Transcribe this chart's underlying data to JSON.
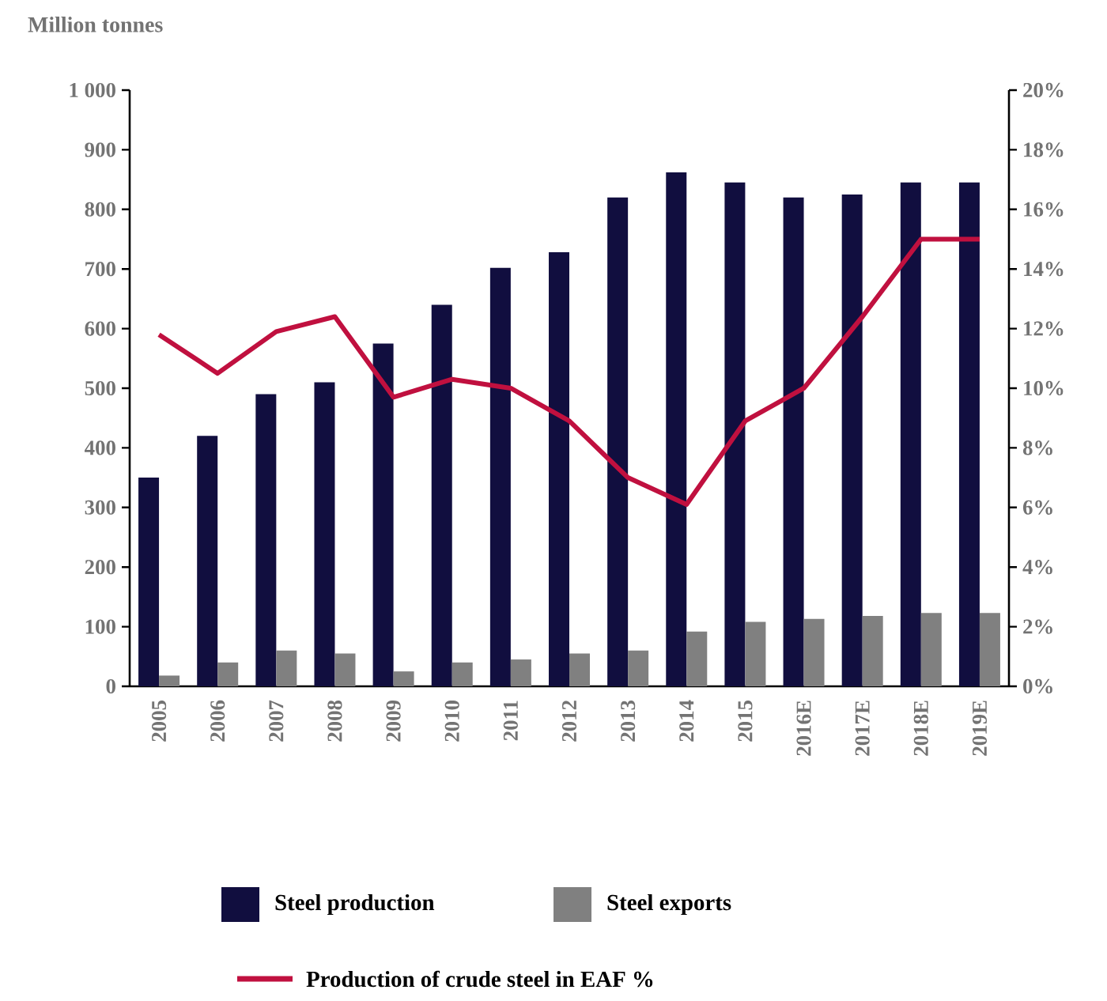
{
  "chart_data": {
    "type": "bar",
    "ylabel": "Million tonnes",
    "categories": [
      "2005",
      "2006",
      "2007",
      "2008",
      "2009",
      "2010",
      "2011",
      "2012",
      "2013",
      "2014",
      "2015",
      "2016E",
      "2017E",
      "2018E",
      "2019E"
    ],
    "series": [
      {
        "name": "Steel production",
        "color": "#110e3f",
        "values": [
          350,
          420,
          490,
          510,
          575,
          640,
          702,
          728,
          820,
          862,
          845,
          820,
          825,
          845,
          845
        ]
      },
      {
        "name": "Steel exports",
        "color": "#808080",
        "values": [
          18,
          40,
          60,
          55,
          25,
          40,
          45,
          55,
          60,
          92,
          108,
          113,
          118,
          123,
          123
        ]
      },
      {
        "name": "Production of crude steel in EAF %",
        "type": "line",
        "axis": "y2",
        "color": "#c0103f",
        "values": [
          11.8,
          10.5,
          11.9,
          12.4,
          9.7,
          10.3,
          10.0,
          8.9,
          7.0,
          6.1,
          8.9,
          10.0,
          12.4,
          15.0,
          15.0
        ]
      }
    ],
    "ylim": [
      0,
      1000
    ],
    "yticks": [
      0,
      100,
      200,
      300,
      400,
      500,
      600,
      700,
      800,
      900,
      {
        "value": 1000,
        "label": "1 000"
      }
    ],
    "y2lim": [
      0,
      20
    ],
    "y2ticks": [
      {
        "value": 0,
        "label": "0%"
      },
      {
        "value": 2,
        "label": "2%"
      },
      {
        "value": 4,
        "label": "4%"
      },
      {
        "value": 6,
        "label": "6%"
      },
      {
        "value": 8,
        "label": "8%"
      },
      {
        "value": 10,
        "label": "10%"
      },
      {
        "value": 12,
        "label": "12%"
      },
      {
        "value": 14,
        "label": "14%"
      },
      {
        "value": 16,
        "label": "16%"
      },
      {
        "value": 18,
        "label": "18%"
      },
      {
        "value": 20,
        "label": "20%"
      }
    ],
    "legend": "bottom"
  }
}
